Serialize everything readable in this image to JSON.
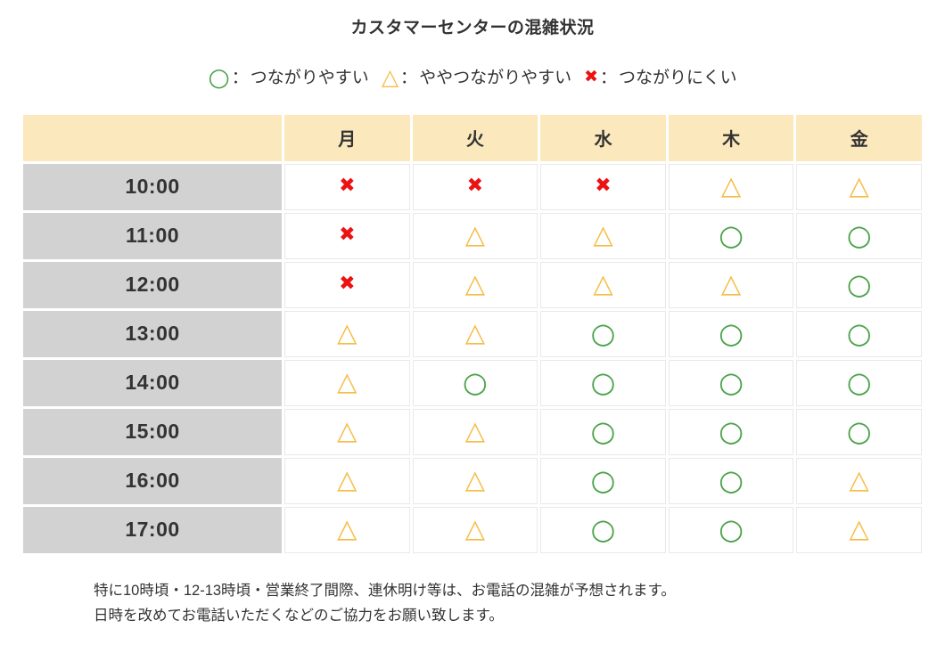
{
  "title": "カスタマーセンターの混雑状況",
  "legend": {
    "separator": "：",
    "items": [
      {
        "symbol": "circle",
        "label": "つながりやすい"
      },
      {
        "symbol": "triangle",
        "label": "ややつながりやすい"
      },
      {
        "symbol": "x",
        "label": "つながりにくい"
      }
    ]
  },
  "symbols": {
    "circle": {
      "glyph": "○",
      "color": "#4BA34B",
      "meaning": "つながりやすい"
    },
    "triangle": {
      "glyph": "△",
      "color": "#F6BC45",
      "meaning": "ややつながりやすい"
    },
    "x": {
      "glyph": "✖",
      "color": "#EC1212",
      "meaning": "つながりにくい"
    }
  },
  "colors": {
    "header_bg": "#FBE9BD",
    "time_bg": "#D2D2D2",
    "grid_line": "#E9E9E9",
    "text": "#333333"
  },
  "table": {
    "corner_label": "",
    "columns": [
      "月",
      "火",
      "水",
      "木",
      "金"
    ],
    "rows": [
      {
        "time": "10:00",
        "cells": [
          "x",
          "x",
          "x",
          "triangle",
          "triangle"
        ]
      },
      {
        "time": "11:00",
        "cells": [
          "x",
          "triangle",
          "triangle",
          "circle",
          "circle"
        ]
      },
      {
        "time": "12:00",
        "cells": [
          "x",
          "triangle",
          "triangle",
          "triangle",
          "circle"
        ]
      },
      {
        "time": "13:00",
        "cells": [
          "triangle",
          "triangle",
          "circle",
          "circle",
          "circle"
        ]
      },
      {
        "time": "14:00",
        "cells": [
          "triangle",
          "circle",
          "circle",
          "circle",
          "circle"
        ]
      },
      {
        "time": "15:00",
        "cells": [
          "triangle",
          "triangle",
          "circle",
          "circle",
          "circle"
        ]
      },
      {
        "time": "16:00",
        "cells": [
          "triangle",
          "triangle",
          "circle",
          "circle",
          "triangle"
        ]
      },
      {
        "time": "17:00",
        "cells": [
          "triangle",
          "triangle",
          "circle",
          "circle",
          "triangle"
        ]
      }
    ]
  },
  "notes": [
    "特に10時頃・12-13時頃・営業終了間際、連休明け等は、お電話の混雑が予想されます。",
    "日時を改めてお電話いただくなどのご協力をお願い致します。"
  ],
  "chart_data": {
    "type": "table",
    "title": "カスタマーセンターの混雑状況",
    "columns": [
      "月",
      "火",
      "水",
      "木",
      "金"
    ],
    "row_labels": [
      "10:00",
      "11:00",
      "12:00",
      "13:00",
      "14:00",
      "15:00",
      "16:00",
      "17:00"
    ],
    "values": [
      [
        "✖",
        "✖",
        "✖",
        "△",
        "△"
      ],
      [
        "✖",
        "△",
        "△",
        "○",
        "○"
      ],
      [
        "✖",
        "△",
        "△",
        "△",
        "○"
      ],
      [
        "△",
        "△",
        "○",
        "○",
        "○"
      ],
      [
        "△",
        "○",
        "○",
        "○",
        "○"
      ],
      [
        "△",
        "△",
        "○",
        "○",
        "○"
      ],
      [
        "△",
        "△",
        "○",
        "○",
        "△"
      ],
      [
        "△",
        "△",
        "○",
        "○",
        "△"
      ]
    ],
    "legend": {
      "○": "つながりやすい",
      "△": "ややつながりやすい",
      "✖": "つながりにくい"
    }
  }
}
